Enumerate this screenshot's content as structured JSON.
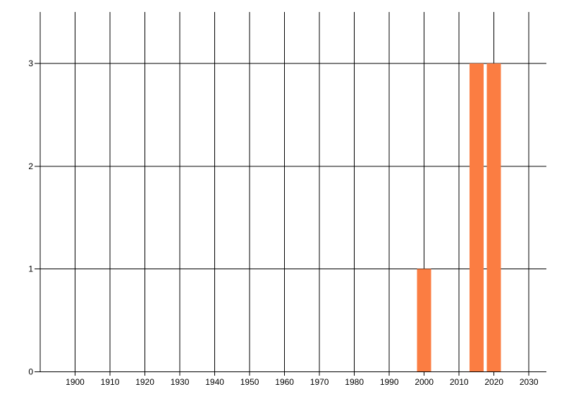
{
  "chart_data": {
    "type": "bar",
    "title": "",
    "xlabel": "",
    "ylabel": "",
    "xlim": [
      1890,
      2035
    ],
    "ylim": [
      0,
      3.5
    ],
    "x_ticks": [
      1900,
      1910,
      1920,
      1930,
      1940,
      1950,
      1960,
      1970,
      1980,
      1990,
      2000,
      2010,
      2020,
      2030
    ],
    "y_ticks": [
      0,
      1,
      2,
      3
    ],
    "grid": true,
    "legend": false,
    "bar_width_years": 4,
    "bars": [
      {
        "x": 2000,
        "value": 1
      },
      {
        "x": 2015,
        "value": 3
      },
      {
        "x": 2020,
        "value": 3
      }
    ],
    "colors": {
      "bar": "#FB7D42",
      "grid": "#000000",
      "axis": "#000000",
      "tick_label": "#000000",
      "background": "#FFFFFF"
    }
  }
}
